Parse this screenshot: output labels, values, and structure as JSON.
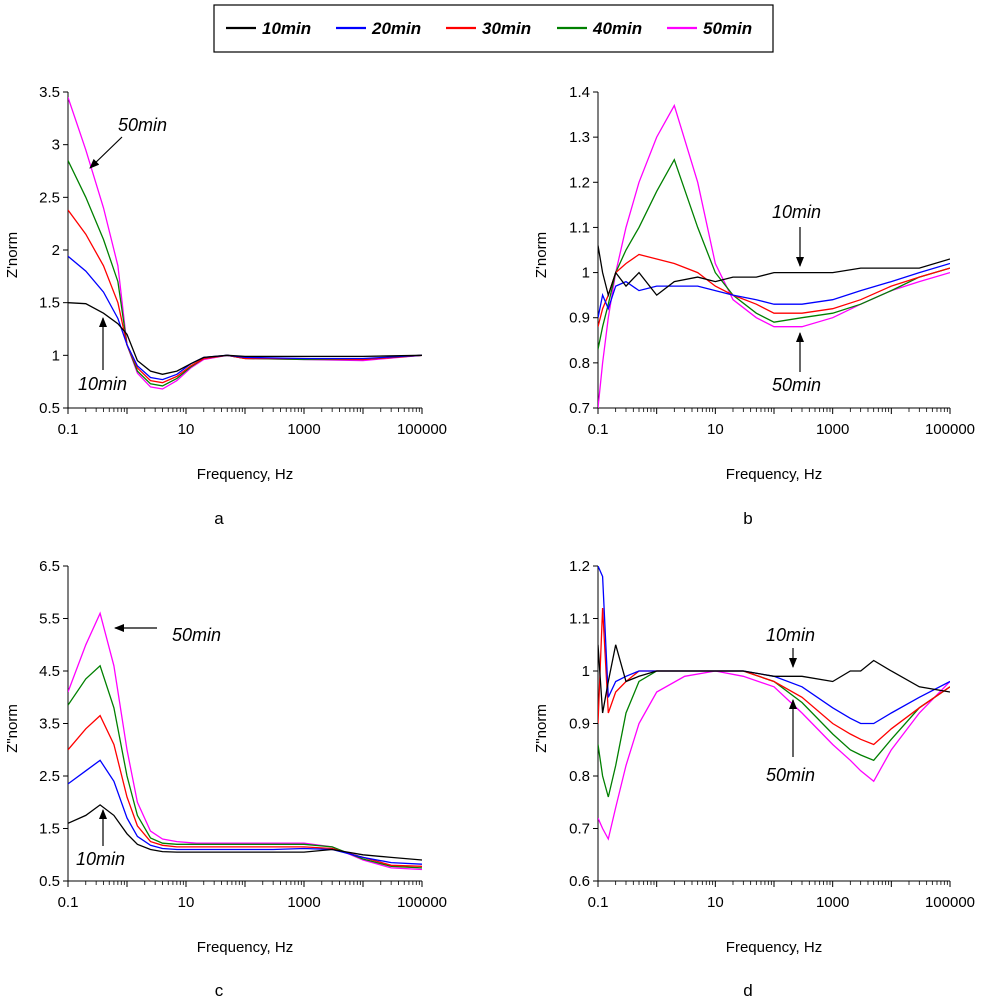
{
  "legend": {
    "entries": [
      {
        "label": "10min",
        "color": "#000000"
      },
      {
        "label": "20min",
        "color": "#0000ff"
      },
      {
        "label": "30min",
        "color": "#ff0000"
      },
      {
        "label": "40min",
        "color": "#008000"
      },
      {
        "label": "50min",
        "color": "#ff00ff"
      }
    ]
  },
  "chart_data": [
    {
      "type": "line",
      "panel": "a",
      "title": "",
      "xlabel": "Frequency, Hz",
      "ylabel": "Z'norm",
      "xscale": "log",
      "xlim": [
        0.1,
        100000
      ],
      "ylim": [
        0.5,
        3.5
      ],
      "xticks": [
        "0.1",
        "10",
        "1000",
        "100000"
      ],
      "yticks": [
        "0.5",
        "1",
        "1.5",
        "2",
        "2.5",
        "3",
        "3.5"
      ],
      "annotations": [
        {
          "text": "50min"
        },
        {
          "text": "10min"
        }
      ],
      "series": [
        {
          "name": "10min",
          "x": [
            0.1,
            0.2,
            0.4,
            0.7,
            1,
            1.5,
            2.5,
            4,
            7,
            12,
            20,
            50,
            100,
            1000,
            10000,
            100000
          ],
          "values": [
            1.5,
            1.49,
            1.4,
            1.3,
            1.2,
            0.95,
            0.85,
            0.82,
            0.85,
            0.92,
            0.98,
            1.0,
            0.99,
            0.99,
            0.99,
            1.0
          ]
        },
        {
          "name": "20min",
          "x": [
            0.1,
            0.2,
            0.4,
            0.7,
            1,
            1.5,
            2.5,
            4,
            7,
            12,
            20,
            50,
            100,
            1000,
            10000,
            100000
          ],
          "values": [
            1.94,
            1.8,
            1.6,
            1.35,
            1.1,
            0.9,
            0.79,
            0.77,
            0.82,
            0.92,
            0.98,
            1.0,
            0.98,
            0.97,
            0.97,
            1.0
          ]
        },
        {
          "name": "30min",
          "x": [
            0.1,
            0.2,
            0.4,
            0.7,
            1,
            1.5,
            2.5,
            4,
            7,
            12,
            20,
            50,
            100,
            1000,
            10000,
            100000
          ],
          "values": [
            2.38,
            2.15,
            1.85,
            1.5,
            1.1,
            0.88,
            0.76,
            0.74,
            0.8,
            0.9,
            0.97,
            1.0,
            0.97,
            0.97,
            0.96,
            1.0
          ]
        },
        {
          "name": "40min",
          "x": [
            0.1,
            0.2,
            0.4,
            0.7,
            1,
            1.5,
            2.5,
            4,
            7,
            12,
            20,
            50,
            100,
            1000,
            10000,
            100000
          ],
          "values": [
            2.85,
            2.5,
            2.1,
            1.7,
            1.1,
            0.85,
            0.73,
            0.71,
            0.78,
            0.89,
            0.97,
            1.0,
            0.97,
            0.96,
            0.96,
            1.0
          ]
        },
        {
          "name": "50min",
          "x": [
            0.1,
            0.2,
            0.4,
            0.7,
            1,
            1.5,
            2.5,
            4,
            7,
            12,
            20,
            50,
            100,
            1000,
            10000,
            100000
          ],
          "values": [
            3.45,
            2.95,
            2.4,
            1.85,
            1.1,
            0.83,
            0.7,
            0.68,
            0.76,
            0.88,
            0.96,
            1.0,
            0.97,
            0.96,
            0.95,
            1.0
          ]
        }
      ]
    },
    {
      "type": "line",
      "panel": "b",
      "title": "",
      "xlabel": "Frequency, Hz",
      "ylabel": "Z'norm",
      "xscale": "log",
      "xlim": [
        0.1,
        100000
      ],
      "ylim": [
        0.7,
        1.4
      ],
      "xticks": [
        "0.1",
        "10",
        "1000",
        "100000"
      ],
      "yticks": [
        "0.7",
        "0.8",
        "0.9",
        "1",
        "1.1",
        "1.2",
        "1.3",
        "1.4"
      ],
      "annotations": [
        {
          "text": "10min"
        },
        {
          "text": "50min"
        }
      ],
      "series": [
        {
          "name": "10min",
          "x": [
            0.1,
            0.12,
            0.15,
            0.2,
            0.3,
            0.5,
            1,
            2,
            5,
            10,
            20,
            50,
            100,
            300,
            1000,
            3000,
            10000,
            30000,
            100000
          ],
          "values": [
            1.06,
            1.0,
            0.95,
            1.0,
            0.97,
            1.0,
            0.95,
            0.98,
            0.99,
            0.98,
            0.99,
            0.99,
            1.0,
            1.0,
            1.0,
            1.01,
            1.01,
            1.01,
            1.03
          ]
        },
        {
          "name": "20min",
          "x": [
            0.1,
            0.12,
            0.15,
            0.2,
            0.3,
            0.5,
            1,
            2,
            5,
            10,
            20,
            50,
            100,
            300,
            1000,
            3000,
            10000,
            30000,
            100000
          ],
          "values": [
            0.9,
            0.95,
            0.92,
            0.97,
            0.98,
            0.96,
            0.97,
            0.97,
            0.97,
            0.96,
            0.95,
            0.94,
            0.93,
            0.93,
            0.94,
            0.96,
            0.98,
            1.0,
            1.02
          ]
        },
        {
          "name": "30min",
          "x": [
            0.1,
            0.12,
            0.15,
            0.2,
            0.3,
            0.5,
            1,
            2,
            5,
            10,
            20,
            50,
            100,
            300,
            1000,
            3000,
            10000,
            30000,
            100000
          ],
          "values": [
            0.88,
            0.92,
            0.95,
            1.0,
            1.02,
            1.04,
            1.03,
            1.02,
            1.0,
            0.97,
            0.95,
            0.93,
            0.91,
            0.91,
            0.92,
            0.94,
            0.97,
            0.99,
            1.01
          ]
        },
        {
          "name": "40min",
          "x": [
            0.1,
            0.12,
            0.15,
            0.2,
            0.3,
            0.5,
            1,
            2,
            5,
            10,
            20,
            50,
            100,
            300,
            1000,
            3000,
            10000,
            30000,
            100000
          ],
          "values": [
            0.83,
            0.88,
            0.93,
            1.0,
            1.05,
            1.1,
            1.18,
            1.25,
            1.1,
            1.0,
            0.95,
            0.91,
            0.89,
            0.9,
            0.91,
            0.93,
            0.96,
            0.99,
            1.01
          ]
        },
        {
          "name": "50min",
          "x": [
            0.1,
            0.12,
            0.15,
            0.2,
            0.3,
            0.5,
            1,
            2,
            5,
            10,
            20,
            50,
            100,
            300,
            1000,
            3000,
            10000,
            30000,
            100000
          ],
          "values": [
            0.7,
            0.8,
            0.9,
            1.0,
            1.1,
            1.2,
            1.3,
            1.37,
            1.2,
            1.02,
            0.94,
            0.9,
            0.88,
            0.88,
            0.9,
            0.93,
            0.96,
            0.98,
            1.0
          ]
        }
      ]
    },
    {
      "type": "line",
      "panel": "c",
      "title": "",
      "xlabel": "Frequency, Hz",
      "ylabel": "Z\"norm",
      "xscale": "log",
      "xlim": [
        0.1,
        100000
      ],
      "ylim": [
        0.5,
        6.5
      ],
      "xticks": [
        "0.1",
        "10",
        "1000",
        "100000"
      ],
      "yticks": [
        "0.5",
        "1.5",
        "2.5",
        "3.5",
        "4.5",
        "5.5",
        "6.5"
      ],
      "annotations": [
        {
          "text": "50min"
        },
        {
          "text": "10min"
        }
      ],
      "series": [
        {
          "name": "10min",
          "x": [
            0.1,
            0.2,
            0.35,
            0.6,
            1,
            1.5,
            2.5,
            4,
            7,
            15,
            50,
            300,
            1000,
            3000,
            10000,
            30000,
            100000
          ],
          "values": [
            1.6,
            1.75,
            1.95,
            1.75,
            1.4,
            1.2,
            1.1,
            1.06,
            1.05,
            1.05,
            1.05,
            1.05,
            1.05,
            1.1,
            1.0,
            0.95,
            0.9
          ]
        },
        {
          "name": "20min",
          "x": [
            0.1,
            0.2,
            0.35,
            0.6,
            1,
            1.5,
            2.5,
            4,
            7,
            15,
            50,
            300,
            1000,
            3000,
            10000,
            30000,
            100000
          ],
          "values": [
            2.35,
            2.6,
            2.8,
            2.4,
            1.7,
            1.35,
            1.18,
            1.12,
            1.1,
            1.1,
            1.1,
            1.1,
            1.12,
            1.1,
            0.95,
            0.85,
            0.82
          ]
        },
        {
          "name": "30min",
          "x": [
            0.1,
            0.2,
            0.35,
            0.6,
            1,
            1.5,
            2.5,
            4,
            7,
            15,
            50,
            300,
            1000,
            3000,
            10000,
            30000,
            100000
          ],
          "values": [
            3.0,
            3.4,
            3.65,
            3.1,
            2.1,
            1.55,
            1.25,
            1.18,
            1.15,
            1.15,
            1.15,
            1.15,
            1.15,
            1.12,
            0.95,
            0.8,
            0.78
          ]
        },
        {
          "name": "40min",
          "x": [
            0.1,
            0.2,
            0.35,
            0.6,
            1,
            1.5,
            2.5,
            4,
            7,
            15,
            50,
            300,
            1000,
            3000,
            10000,
            30000,
            100000
          ],
          "values": [
            3.85,
            4.35,
            4.6,
            3.8,
            2.5,
            1.75,
            1.32,
            1.22,
            1.2,
            1.2,
            1.2,
            1.2,
            1.2,
            1.15,
            0.92,
            0.78,
            0.75
          ]
        },
        {
          "name": "50min",
          "x": [
            0.1,
            0.2,
            0.35,
            0.6,
            1,
            1.5,
            2.5,
            4,
            7,
            15,
            50,
            300,
            1000,
            3000,
            10000,
            30000,
            100000
          ],
          "values": [
            4.1,
            5.0,
            5.6,
            4.6,
            3.0,
            2.0,
            1.45,
            1.3,
            1.25,
            1.22,
            1.22,
            1.22,
            1.22,
            1.15,
            0.9,
            0.75,
            0.72
          ]
        }
      ]
    },
    {
      "type": "line",
      "panel": "d",
      "title": "",
      "xlabel": "Frequency, Hz",
      "ylabel": "Z\"norm",
      "xscale": "log",
      "xlim": [
        0.1,
        100000
      ],
      "ylim": [
        0.6,
        1.2
      ],
      "xticks": [
        "0.1",
        "10",
        "1000",
        "100000"
      ],
      "yticks": [
        "0.6",
        "0.7",
        "0.8",
        "0.9",
        "1",
        "1.1",
        "1.2"
      ],
      "annotations": [
        {
          "text": "10min"
        },
        {
          "text": "50min"
        }
      ],
      "series": [
        {
          "name": "10min",
          "x": [
            0.1,
            0.12,
            0.15,
            0.2,
            0.3,
            0.5,
            1,
            3,
            10,
            30,
            100,
            300,
            1000,
            2000,
            3000,
            5000,
            10000,
            30000,
            100000
          ],
          "values": [
            1.05,
            0.92,
            0.98,
            1.05,
            0.98,
            0.99,
            1.0,
            1.0,
            1.0,
            1.0,
            0.99,
            0.99,
            0.98,
            1.0,
            1.0,
            1.02,
            1.0,
            0.97,
            0.96
          ]
        },
        {
          "name": "20min",
          "x": [
            0.1,
            0.12,
            0.15,
            0.2,
            0.3,
            0.5,
            1,
            3,
            10,
            30,
            100,
            300,
            1000,
            2000,
            3000,
            5000,
            10000,
            30000,
            100000
          ],
          "values": [
            1.2,
            1.18,
            0.95,
            0.98,
            0.99,
            1.0,
            1.0,
            1.0,
            1.0,
            1.0,
            0.99,
            0.97,
            0.93,
            0.91,
            0.9,
            0.9,
            0.92,
            0.95,
            0.98
          ]
        },
        {
          "name": "30min",
          "x": [
            0.1,
            0.12,
            0.15,
            0.2,
            0.3,
            0.5,
            1,
            3,
            10,
            30,
            100,
            300,
            1000,
            2000,
            3000,
            5000,
            10000,
            30000,
            100000
          ],
          "values": [
            0.9,
            1.12,
            0.92,
            0.96,
            0.98,
            1.0,
            1.0,
            1.0,
            1.0,
            1.0,
            0.98,
            0.95,
            0.9,
            0.88,
            0.87,
            0.86,
            0.89,
            0.93,
            0.97
          ]
        },
        {
          "name": "40min",
          "x": [
            0.1,
            0.12,
            0.15,
            0.2,
            0.3,
            0.5,
            1,
            3,
            10,
            30,
            100,
            300,
            1000,
            2000,
            3000,
            5000,
            10000,
            30000,
            100000
          ],
          "values": [
            0.86,
            0.8,
            0.76,
            0.82,
            0.92,
            0.98,
            1.0,
            1.0,
            1.0,
            1.0,
            0.98,
            0.94,
            0.88,
            0.85,
            0.84,
            0.83,
            0.87,
            0.93,
            0.97
          ]
        },
        {
          "name": "50min",
          "x": [
            0.1,
            0.12,
            0.15,
            0.2,
            0.3,
            0.5,
            1,
            3,
            10,
            30,
            100,
            300,
            1000,
            2000,
            3000,
            5000,
            10000,
            30000,
            100000
          ],
          "values": [
            0.72,
            0.7,
            0.68,
            0.74,
            0.82,
            0.9,
            0.96,
            0.99,
            1.0,
            0.99,
            0.97,
            0.92,
            0.86,
            0.83,
            0.81,
            0.79,
            0.85,
            0.92,
            0.98
          ]
        }
      ]
    }
  ],
  "panel_letters": {
    "a": "a",
    "b": "b",
    "c": "c",
    "d": "d"
  }
}
